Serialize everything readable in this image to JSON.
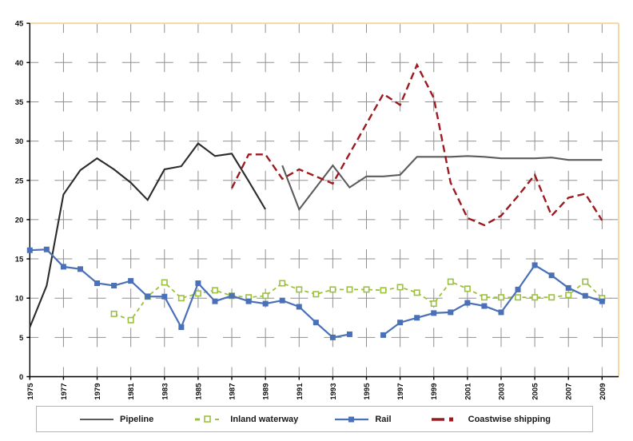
{
  "chart_data": {
    "type": "line",
    "title": "",
    "x": [
      1975,
      1976,
      1977,
      1978,
      1979,
      1980,
      1981,
      1982,
      1983,
      1984,
      1985,
      1986,
      1987,
      1988,
      1989,
      1990,
      1991,
      1992,
      1993,
      1994,
      1995,
      1996,
      1997,
      1998,
      1999,
      2000,
      2001,
      2002,
      2003,
      2004,
      2005,
      2006,
      2007,
      2008,
      2009
    ],
    "x_tick_labels": [
      "1975",
      "1977",
      "1979",
      "1981",
      "1983",
      "1985",
      "1987",
      "1989",
      "1991",
      "1993",
      "1995",
      "1997",
      "1999",
      "2001",
      "2003",
      "2005",
      "2007",
      "2009"
    ],
    "y_tick_labels": [
      "0",
      "5",
      "10",
      "15",
      "20",
      "25",
      "30",
      "35",
      "40",
      "45"
    ],
    "ylim": [
      0,
      45
    ],
    "ytick_step": 5,
    "grid": "dashed-cross",
    "legend_position": "bottom",
    "series": [
      {
        "name": "Pipeline",
        "color": "#2b2b2b",
        "segment_colors": [
          "#2b2b2b",
          "#5c5c5c"
        ],
        "break_before": [
          1990
        ],
        "marker": "none",
        "line_width": 2.1,
        "values": [
          6.3,
          11.6,
          23.2,
          26.3,
          27.8,
          26.4,
          24.7,
          22.5,
          26.4,
          26.8,
          29.7,
          28.1,
          28.4,
          24.9,
          21.3,
          26.9,
          21.3,
          24.1,
          26.9,
          24.1,
          25.5,
          25.5,
          25.7,
          28.0,
          28.0,
          28.0,
          28.1,
          28.0,
          27.8,
          27.8,
          27.8,
          27.9,
          27.6,
          27.6,
          27.6
        ]
      },
      {
        "name": "Inland waterway",
        "color": "#9cc13d",
        "dash": [
          5,
          4
        ],
        "marker": "open-square",
        "line_width": 1.8,
        "values": [
          null,
          null,
          null,
          null,
          null,
          8.0,
          7.2,
          10.2,
          12.0,
          10.0,
          10.6,
          11.0,
          10.3,
          10.1,
          10.3,
          11.9,
          11.1,
          10.5,
          11.1,
          11.1,
          11.1,
          11.0,
          11.4,
          10.7,
          9.3,
          12.1,
          11.2,
          10.1,
          10.1,
          10.1,
          10.1,
          10.1,
          10.4,
          12.1,
          10.0
        ]
      },
      {
        "name": "Rail",
        "color": "#4a70b8",
        "marker": "filled-square",
        "line_width": 2.2,
        "values": [
          16.1,
          16.2,
          14.0,
          13.7,
          11.9,
          11.6,
          12.2,
          10.2,
          10.2,
          6.3,
          11.9,
          9.6,
          10.3,
          9.6,
          9.3,
          9.7,
          8.9,
          6.9,
          5.0,
          5.4,
          null,
          5.3,
          6.9,
          7.5,
          8.1,
          8.2,
          9.4,
          9.0,
          8.2,
          11.1,
          14.2,
          12.9,
          11.3,
          10.3,
          9.6
        ]
      },
      {
        "name": "Coastwise shipping",
        "color": "#9b1b21",
        "dash": [
          9,
          5
        ],
        "marker": "none",
        "line_width": 2.4,
        "values": [
          null,
          null,
          null,
          null,
          null,
          null,
          null,
          null,
          null,
          null,
          null,
          null,
          24.0,
          28.3,
          28.3,
          25.2,
          26.4,
          25.5,
          24.6,
          28.4,
          32.2,
          36.0,
          34.6,
          39.7,
          35.5,
          24.7,
          20.2,
          19.3,
          20.5,
          23.0,
          25.7,
          20.5,
          22.8,
          23.3,
          19.9
        ]
      }
    ]
  },
  "colors": {
    "grid": "#909090",
    "axis": "#000000",
    "plot_border_top_right": "#f6d7a2",
    "legend_border": "#b5b5b5",
    "page_bg": "#ffffff"
  }
}
